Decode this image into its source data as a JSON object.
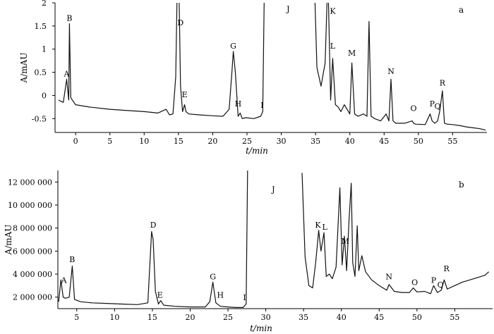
{
  "chart_data": [
    {
      "panel_label": "a",
      "type": "line",
      "xlabel": "t/min",
      "ylabel": "A/mAU",
      "xlim": [
        -3,
        60
      ],
      "ylim": [
        -0.8,
        2
      ],
      "x_ticks": [
        "0",
        "5",
        "10",
        "15",
        "20",
        "25",
        "30",
        "35",
        "40",
        "45",
        "50",
        "55"
      ],
      "x_tick_values": [
        0,
        5,
        10,
        15,
        20,
        25,
        30,
        35,
        40,
        45,
        50,
        55
      ],
      "y_ticks": [
        "2",
        "1.5",
        "1",
        "0.5",
        "0",
        "-0.5"
      ],
      "y_tick_values": [
        2,
        1.5,
        1,
        0.5,
        0,
        -0.5
      ],
      "segments": [
        {
          "x": [
            -2.5,
            -1.8,
            -1.3,
            -1.0,
            -0.9,
            -0.7,
            0,
            2,
            5,
            8,
            10,
            12,
            13.2,
            13.7,
            14.2,
            14.6,
            14.85,
            15.05,
            15.3,
            15.6,
            15.9,
            16.1,
            16.5,
            18,
            20,
            21.5,
            22.4,
            22.8,
            23.0,
            23.3,
            23.7,
            24,
            24.3,
            24.8,
            26,
            27,
            27.3,
            27.55
          ],
          "y": [
            -0.1,
            -0.15,
            0.35,
            -0.1,
            1.55,
            -0.05,
            -0.2,
            -0.25,
            -0.3,
            -0.33,
            -0.35,
            -0.38,
            -0.3,
            -0.42,
            -0.4,
            0.4,
            2.6,
            2.6,
            0.2,
            -0.35,
            -0.2,
            -0.35,
            -0.4,
            -0.42,
            -0.44,
            -0.45,
            -0.3,
            0.5,
            0.95,
            0.5,
            -0.45,
            -0.38,
            -0.5,
            -0.48,
            -0.5,
            -0.45,
            -0.35,
            2.6
          ]
        },
        {
          "x": [
            34.8,
            35.2,
            35.8,
            36.4,
            36.8,
            37.2,
            37.5,
            37.9,
            38.3,
            38.7,
            39.2,
            39.6,
            40.0,
            40.3,
            40.7,
            41.2,
            42.0,
            42.5,
            42.8,
            43.1,
            43.6,
            44.5,
            45.3,
            45.7,
            46.0,
            46.3,
            46.7,
            48,
            49.1,
            49.3,
            49.6,
            51,
            51.7,
            52.0,
            52.4,
            52.8,
            53.1,
            53.5,
            53.8,
            54.2,
            55,
            56,
            57,
            58,
            59,
            59.8
          ],
          "y": [
            2.6,
            0.6,
            0.2,
            0.7,
            2.6,
            -0.1,
            0.8,
            -0.2,
            -0.25,
            -0.35,
            -0.2,
            -0.3,
            -0.4,
            0.7,
            -0.4,
            -0.45,
            -0.4,
            -0.45,
            1.6,
            -0.45,
            -0.5,
            -0.55,
            -0.4,
            -0.55,
            0.35,
            -0.55,
            -0.6,
            -0.6,
            -0.55,
            -0.6,
            -0.62,
            -0.63,
            -0.4,
            -0.55,
            -0.6,
            -0.55,
            -0.35,
            0.1,
            -0.6,
            -0.62,
            -0.63,
            -0.65,
            -0.68,
            -0.7,
            -0.72,
            -0.75
          ]
        }
      ],
      "peaks": [
        {
          "label": "A",
          "x": -1.3,
          "y": 0.35
        },
        {
          "label": "B",
          "x": -0.9,
          "y": 1.55
        },
        {
          "label": "D",
          "x": 15.3,
          "y": 1.45
        },
        {
          "label": "E",
          "x": 15.9,
          "y": -0.1
        },
        {
          "label": "G",
          "x": 23.0,
          "y": 0.95
        },
        {
          "label": "H",
          "x": 23.7,
          "y": -0.3
        },
        {
          "label": "I",
          "x": 27.2,
          "y": -0.33
        },
        {
          "label": "J",
          "x": 31.0,
          "y": 1.75
        },
        {
          "label": "K",
          "x": 37.5,
          "y": 1.7
        },
        {
          "label": "L",
          "x": 37.5,
          "y": 0.95
        },
        {
          "label": "M",
          "x": 40.3,
          "y": 0.8
        },
        {
          "label": "N",
          "x": 46.0,
          "y": 0.4
        },
        {
          "label": "O",
          "x": 49.3,
          "y": -0.4
        },
        {
          "label": "P",
          "x": 52.0,
          "y": -0.3
        },
        {
          "label": "Q",
          "x": 52.8,
          "y": -0.35
        },
        {
          "label": "R",
          "x": 53.5,
          "y": 0.15
        }
      ]
    },
    {
      "panel_label": "b",
      "type": "line",
      "xlabel": "t/min",
      "ylabel": "A/mAU",
      "xlim": [
        2.5,
        60
      ],
      "ylim": [
        1000000,
        13000000
      ],
      "x_ticks": [
        "5",
        "10",
        "15",
        "20",
        "25",
        "30",
        "35",
        "40",
        "45",
        "50",
        "55"
      ],
      "x_tick_values": [
        5,
        10,
        15,
        20,
        25,
        30,
        35,
        40,
        45,
        50,
        55
      ],
      "y_ticks": [
        "12 000 000",
        "10 000 000",
        "8 000 000",
        "6 000 000",
        "4 000 000",
        "2 000 000"
      ],
      "y_tick_values": [
        12000000,
        10000000,
        8000000,
        6000000,
        4000000,
        2000000
      ],
      "segments": [
        {
          "x": [
            2.6,
            2.9,
            3.2,
            3.5,
            4.0,
            4.4,
            4.7,
            5.5,
            7,
            9,
            11,
            13,
            14.4,
            14.9,
            15.1,
            15.4,
            15.8,
            16.1,
            16.5,
            18,
            20,
            22,
            22.6,
            23.0,
            23.4,
            24,
            25,
            26,
            27,
            27.4,
            27.6
          ],
          "y": [
            1600000,
            3500000,
            2000000,
            1900000,
            2000000,
            4700000,
            1800000,
            1600000,
            1500000,
            1450000,
            1400000,
            1350000,
            1500000,
            7700000,
            7000000,
            2500000,
            1400000,
            1700000,
            1300000,
            1200000,
            1150000,
            1150000,
            1600000,
            3300000,
            1500000,
            1200000,
            1150000,
            1100000,
            1100000,
            1400000,
            13500000
          ]
        },
        {
          "x": [
            34.8,
            35.2,
            35.7,
            36.2,
            36.6,
            37.0,
            37.3,
            37.7,
            38.0,
            38.4,
            38.8,
            39.3,
            39.8,
            40.1,
            40.4,
            40.7,
            41.0,
            41.3,
            41.5,
            41.8,
            42.1,
            42.3,
            42.7,
            43.2,
            44,
            45,
            46,
            46.3,
            47,
            48,
            49,
            49.5,
            50,
            51,
            51.8,
            52.2,
            52.7,
            53.2,
            53.6,
            54.0,
            55,
            56,
            57,
            58,
            59,
            59.5
          ],
          "y": [
            12800000,
            5500000,
            3000000,
            2800000,
            5000000,
            7800000,
            6000000,
            7600000,
            3800000,
            4000000,
            3600000,
            4600000,
            11500000,
            4800000,
            7300000,
            4300000,
            8600000,
            11900000,
            5000000,
            3800000,
            8200000,
            4300000,
            5600000,
            4200000,
            3500000,
            3000000,
            2600000,
            3100000,
            2500000,
            2400000,
            2400000,
            2800000,
            2450000,
            2500000,
            2300000,
            3000000,
            2400000,
            2600000,
            3500000,
            2700000,
            3000000,
            3300000,
            3500000,
            3700000,
            3900000,
            4200000
          ]
        }
      ],
      "peaks": [
        {
          "label": "A",
          "x": 3.3,
          "y": 3000000
        },
        {
          "label": "B",
          "x": 4.4,
          "y": 4800000
        },
        {
          "label": "D",
          "x": 15.1,
          "y": 7800000
        },
        {
          "label": "E",
          "x": 16.0,
          "y": 1700000
        },
        {
          "label": "G",
          "x": 23.0,
          "y": 3300000
        },
        {
          "label": "H",
          "x": 24.0,
          "y": 1700000
        },
        {
          "label": "I",
          "x": 27.2,
          "y": 1500000
        },
        {
          "label": "J",
          "x": 31.0,
          "y": 10900000
        },
        {
          "label": "K",
          "x": 36.9,
          "y": 7800000
        },
        {
          "label": "L",
          "x": 37.8,
          "y": 7600000
        },
        {
          "label": "M",
          "x": 40.5,
          "y": 6400000
        },
        {
          "label": "N",
          "x": 46.3,
          "y": 3300000
        },
        {
          "label": "O",
          "x": 49.7,
          "y": 2800000
        },
        {
          "label": "P",
          "x": 52.2,
          "y": 3000000
        },
        {
          "label": "Q",
          "x": 53.1,
          "y": 2600000
        },
        {
          "label": "R",
          "x": 53.9,
          "y": 4000000
        }
      ]
    }
  ]
}
